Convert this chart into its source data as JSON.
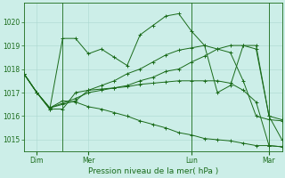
{
  "background_color": "#cceee8",
  "grid_color": "#aad8d0",
  "line_color": "#1a6b1a",
  "text_color": "#1a6b1a",
  "xlabel": "Pression niveau de la mer( hPa )",
  "ylim": [
    1014.5,
    1020.8
  ],
  "yticks": [
    1015,
    1016,
    1017,
    1018,
    1019,
    1020
  ],
  "day_labels": [
    "Dim",
    "Mer",
    "Lun",
    "Mar"
  ],
  "day_positions": [
    1,
    5,
    13,
    19
  ],
  "vline_positions": [
    3,
    13,
    19
  ],
  "series": [
    [
      1017.8,
      1017.0,
      1016.3,
      1016.3,
      1017.0,
      1017.1,
      1017.3,
      1017.5,
      1017.8,
      1018.0,
      1018.3,
      1018.6,
      1018.8,
      1018.9,
      1019.0,
      1018.85,
      1018.7,
      1017.5,
      1016.0,
      1015.85,
      1015.8
    ],
    [
      1017.8,
      1017.0,
      1016.3,
      1019.3,
      1019.3,
      1018.65,
      1018.85,
      1018.5,
      1018.15,
      1019.45,
      1019.85,
      1020.25,
      1020.35,
      1019.6,
      1019.0,
      1017.0,
      1017.3,
      1019.0,
      1019.0,
      1016.0,
      1015.0
    ],
    [
      1017.8,
      1017.0,
      1016.35,
      1016.5,
      1016.65,
      1017.1,
      1017.15,
      1017.2,
      1017.25,
      1017.35,
      1017.4,
      1017.45,
      1017.5,
      1017.5,
      1017.5,
      1017.5,
      1017.4,
      1017.1,
      1016.6,
      1014.75,
      1014.7
    ],
    [
      1017.8,
      1017.0,
      1016.35,
      1016.55,
      1016.75,
      1017.0,
      1017.1,
      1017.2,
      1017.3,
      1017.5,
      1017.65,
      1017.9,
      1018.0,
      1018.3,
      1018.55,
      1018.85,
      1019.0,
      1019.0,
      1018.85,
      1016.0,
      1015.85
    ],
    [
      1017.8,
      1017.0,
      1016.35,
      1016.65,
      1016.6,
      1016.4,
      1016.3,
      1016.15,
      1016.0,
      1015.8,
      1015.65,
      1015.5,
      1015.3,
      1015.2,
      1015.05,
      1015.0,
      1014.95,
      1014.85,
      1014.75,
      1014.75,
      1014.7
    ]
  ],
  "n_points": 21,
  "figsize": [
    3.2,
    2.0
  ],
  "dpi": 100
}
